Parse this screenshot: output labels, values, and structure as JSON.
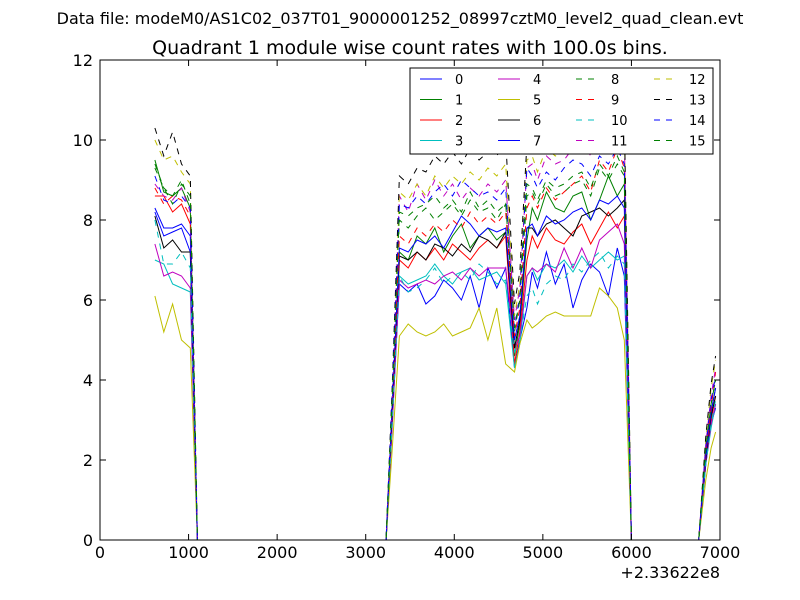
{
  "chart_data": {
    "type": "line",
    "suptitle": "Data file: modeM0/AS1C02_037T01_9000001252_08997cztM0_level2_quad_clean.evt",
    "title": "Quadrant 1 module wise count rates with 100.0s bins.",
    "xlabel": "",
    "ylabel": "",
    "x_offset_label": "+2.33622e8",
    "xlim": [
      0,
      7000
    ],
    "ylim": [
      0,
      12
    ],
    "xticks": [
      "0",
      "1000",
      "2000",
      "3000",
      "4000",
      "5000",
      "6000",
      "7000"
    ],
    "yticks": [
      "0",
      "2",
      "4",
      "6",
      "8",
      "10",
      "12"
    ],
    "legend_position": "top-right",
    "x": [
      620,
      720,
      820,
      920,
      1020,
      1100,
      3230,
      3300,
      3380,
      3480,
      3580,
      3680,
      3780,
      3880,
      3980,
      4080,
      4180,
      4280,
      4380,
      4480,
      4580,
      4680,
      4740,
      4820,
      4880,
      4940,
      5040,
      5140,
      5240,
      5340,
      5440,
      5540,
      5640,
      5740,
      5840,
      5920,
      6000,
      6760,
      6840,
      6900,
      6950
    ],
    "series": [
      {
        "name": "0",
        "color": "#0000ff",
        "dash": "solid",
        "values": [
          8.2,
          7.6,
          7.7,
          7.8,
          7.2,
          0,
          0,
          3.0,
          6.4,
          6.2,
          6.4,
          5.9,
          6.1,
          6.5,
          6.3,
          6.0,
          6.6,
          5.8,
          6.8,
          6.3,
          6.8,
          4.3,
          5.0,
          5.8,
          6.7,
          6.3,
          7.2,
          6.4,
          6.9,
          5.8,
          6.5,
          6.9,
          6.7,
          6.1,
          7.3,
          6.6,
          0,
          0,
          1.9,
          2.9,
          3.3
        ]
      },
      {
        "name": "1",
        "color": "#008000",
        "dash": "solid",
        "values": [
          9.5,
          8.7,
          8.6,
          8.8,
          8.3,
          0,
          0,
          3.4,
          7.2,
          7.0,
          7.6,
          7.4,
          7.8,
          7.2,
          7.6,
          7.9,
          7.3,
          7.6,
          7.8,
          7.5,
          7.7,
          4.6,
          5.4,
          7.5,
          8.3,
          8.0,
          8.7,
          8.3,
          8.2,
          8.6,
          8.7,
          8.0,
          8.5,
          9.1,
          8.6,
          8.9,
          0,
          0,
          2.1,
          3.2,
          3.8
        ]
      },
      {
        "name": "2",
        "color": "#ff0000",
        "dash": "solid",
        "values": [
          8.6,
          8.6,
          8.2,
          8.4,
          7.9,
          0,
          0,
          3.2,
          7.0,
          6.8,
          7.2,
          7.0,
          7.3,
          7.0,
          7.4,
          7.2,
          7.0,
          7.3,
          7.5,
          7.3,
          7.6,
          4.4,
          5.2,
          7.0,
          7.6,
          7.3,
          7.8,
          7.5,
          7.4,
          7.7,
          7.9,
          7.4,
          7.8,
          8.2,
          7.8,
          8.1,
          0,
          0,
          2.0,
          3.0,
          3.6
        ]
      },
      {
        "name": "3",
        "color": "#00bfbf",
        "dash": "solid",
        "values": [
          7.0,
          6.9,
          6.4,
          6.3,
          6.2,
          0,
          0,
          2.9,
          6.6,
          6.4,
          6.5,
          6.6,
          6.9,
          6.6,
          6.4,
          6.7,
          6.8,
          6.5,
          6.6,
          6.7,
          6.4,
          4.3,
          4.9,
          6.6,
          6.8,
          6.5,
          6.9,
          6.8,
          7.0,
          6.7,
          7.1,
          6.8,
          7.0,
          7.2,
          7.0,
          7.1,
          0,
          0,
          1.9,
          2.8,
          3.4
        ]
      },
      {
        "name": "4",
        "color": "#bf00bf",
        "dash": "solid",
        "values": [
          7.4,
          6.6,
          6.7,
          6.6,
          6.3,
          0,
          0,
          2.9,
          6.5,
          6.3,
          6.4,
          6.5,
          6.4,
          6.6,
          6.7,
          6.5,
          6.8,
          6.6,
          6.8,
          6.8,
          6.8,
          4.8,
          5.1,
          6.6,
          6.8,
          6.7,
          6.9,
          6.7,
          7.3,
          6.8,
          7.3,
          6.8,
          7.5,
          7.7,
          7.9,
          7.4,
          0,
          0,
          1.9,
          2.9,
          3.4
        ]
      },
      {
        "name": "5",
        "color": "#bfbf00",
        "dash": "solid",
        "values": [
          6.1,
          5.2,
          5.9,
          5.0,
          4.8,
          0,
          0,
          2.3,
          5.1,
          5.4,
          5.2,
          5.1,
          5.2,
          5.4,
          5.1,
          5.2,
          5.3,
          5.8,
          5.0,
          5.8,
          4.4,
          4.2,
          4.9,
          5.5,
          5.3,
          5.4,
          5.6,
          5.7,
          5.6,
          5.6,
          5.6,
          5.6,
          6.3,
          6.1,
          5.8,
          5.0,
          0,
          0,
          1.5,
          2.3,
          2.7
        ]
      },
      {
        "name": "6",
        "color": "#000000",
        "dash": "solid",
        "values": [
          8.1,
          7.3,
          7.5,
          7.2,
          7.2,
          0,
          0,
          3.2,
          7.1,
          7.0,
          7.2,
          7.0,
          7.4,
          7.3,
          7.1,
          7.4,
          7.2,
          7.6,
          7.5,
          7.3,
          7.7,
          4.8,
          5.5,
          7.8,
          7.8,
          7.6,
          7.9,
          8.0,
          7.8,
          7.6,
          8.1,
          8.2,
          8.3,
          8.1,
          8.3,
          8.5,
          0,
          0,
          2.0,
          3.1,
          3.6
        ]
      },
      {
        "name": "7",
        "color": "#0000ff",
        "dash": "solid",
        "values": [
          8.3,
          7.8,
          7.8,
          7.9,
          7.6,
          0,
          0,
          3.4,
          7.3,
          7.2,
          7.5,
          7.4,
          7.6,
          7.3,
          7.7,
          8.1,
          7.9,
          7.6,
          7.8,
          7.7,
          7.8,
          5.0,
          5.6,
          7.8,
          7.9,
          7.6,
          8.1,
          7.9,
          8.0,
          8.2,
          8.3,
          8.0,
          8.5,
          8.4,
          8.6,
          8.3,
          0,
          0,
          2.1,
          3.2,
          3.8
        ]
      },
      {
        "name": "8",
        "color": "#008000",
        "dash": "dashed",
        "values": [
          9.4,
          8.8,
          8.6,
          9.0,
          8.4,
          0,
          0,
          3.6,
          8.0,
          7.8,
          8.1,
          8.3,
          8.0,
          8.2,
          8.4,
          8.1,
          8.5,
          8.2,
          8.3,
          8.0,
          8.4,
          5.2,
          6.0,
          8.6,
          8.7,
          8.4,
          8.9,
          8.6,
          8.7,
          8.9,
          9.0,
          8.6,
          9.3,
          9.0,
          9.4,
          9.1,
          0,
          0,
          2.2,
          3.4,
          4.0
        ]
      },
      {
        "name": "9",
        "color": "#ff0000",
        "dash": "dashed",
        "values": [
          8.8,
          8.4,
          8.6,
          8.5,
          8.1,
          0,
          0,
          3.3,
          7.6,
          7.4,
          7.8,
          7.6,
          7.9,
          7.7,
          8.0,
          7.8,
          8.2,
          7.9,
          8.1,
          7.9,
          8.2,
          5.1,
          5.8,
          8.3,
          8.6,
          8.3,
          8.8,
          8.5,
          8.7,
          8.9,
          9.1,
          8.7,
          9.5,
          9.2,
          9.8,
          9.3,
          0,
          0,
          2.2,
          3.3,
          4.2
        ]
      },
      {
        "name": "10",
        "color": "#00bfbf",
        "dash": "dashed",
        "values": [
          8.0,
          6.9,
          6.9,
          7.2,
          6.8,
          0,
          0,
          3.0,
          6.6,
          6.2,
          6.3,
          6.5,
          6.8,
          6.4,
          6.6,
          6.7,
          6.5,
          6.9,
          6.7,
          6.4,
          6.5,
          4.7,
          5.0,
          6.1,
          6.3,
          5.9,
          6.4,
          6.6,
          6.5,
          6.9,
          6.7,
          7.0,
          7.2,
          6.8,
          7.1,
          6.9,
          0,
          0,
          1.9,
          2.9,
          3.5
        ]
      },
      {
        "name": "11",
        "color": "#bf00bf",
        "dash": "dashed",
        "values": [
          8.9,
          8.6,
          8.5,
          8.8,
          8.2,
          0,
          0,
          3.6,
          8.6,
          8.2,
          8.9,
          8.5,
          9.0,
          8.6,
          8.9,
          8.5,
          8.8,
          8.6,
          8.9,
          8.7,
          9.0,
          5.5,
          6.3,
          9.3,
          9.4,
          9.0,
          9.6,
          9.4,
          9.5,
          9.8,
          10.0,
          9.6,
          10.3,
          9.9,
          10.5,
          10.1,
          0,
          0,
          2.4,
          3.6,
          4.3
        ]
      },
      {
        "name": "12",
        "color": "#bfbf00",
        "dash": "dashed",
        "values": [
          10.0,
          9.5,
          9.6,
          9.2,
          8.9,
          0,
          0,
          3.7,
          8.7,
          8.5,
          8.9,
          8.6,
          9.1,
          8.8,
          9.1,
          8.9,
          9.2,
          9.0,
          9.3,
          9.1,
          9.4,
          5.6,
          6.4,
          9.5,
          9.6,
          9.2,
          9.8,
          9.6,
          9.7,
          10.0,
          10.2,
          9.9,
          10.6,
          10.3,
          10.8,
          10.4,
          0,
          0,
          2.5,
          3.8,
          4.5
        ]
      },
      {
        "name": "13",
        "color": "#000000",
        "dash": "dashed",
        "values": [
          10.3,
          9.6,
          10.2,
          9.4,
          9.1,
          0,
          0,
          3.9,
          9.1,
          8.9,
          9.3,
          9.2,
          9.6,
          9.4,
          9.7,
          9.4,
          9.8,
          9.5,
          9.7,
          9.6,
          10.0,
          5.9,
          6.7,
          9.9,
          10.1,
          9.7,
          10.3,
          10.0,
          10.2,
          10.4,
          10.6,
          10.2,
          10.9,
          10.5,
          11.0,
          10.6,
          0,
          0,
          2.6,
          3.9,
          4.6
        ]
      },
      {
        "name": "14",
        "color": "#0000ff",
        "dash": "dashed",
        "values": [
          9.1,
          8.5,
          8.4,
          8.6,
          8.3,
          0,
          0,
          3.7,
          8.4,
          8.3,
          8.6,
          8.4,
          8.7,
          8.9,
          8.6,
          9.0,
          8.8,
          8.6,
          8.7,
          8.5,
          8.8,
          5.3,
          6.1,
          9.3,
          9.1,
          8.8,
          9.2,
          9.0,
          9.3,
          9.5,
          9.4,
          9.1,
          9.6,
          9.4,
          9.8,
          9.4,
          0,
          0,
          2.3,
          3.5,
          4.1
        ]
      },
      {
        "name": "15",
        "color": "#008000",
        "dash": "dashed",
        "values": [
          9.3,
          8.8,
          8.4,
          8.9,
          8.6,
          0,
          0,
          3.6,
          8.2,
          8.1,
          8.3,
          8.4,
          8.6,
          8.3,
          8.5,
          8.2,
          8.7,
          8.3,
          8.5,
          8.2,
          8.4,
          5.3,
          6.0,
          8.9,
          8.8,
          8.5,
          9.0,
          8.8,
          8.9,
          9.1,
          9.2,
          8.8,
          9.4,
          9.1,
          9.6,
          9.2,
          0,
          0,
          2.3,
          3.4,
          4.0
        ]
      }
    ]
  }
}
